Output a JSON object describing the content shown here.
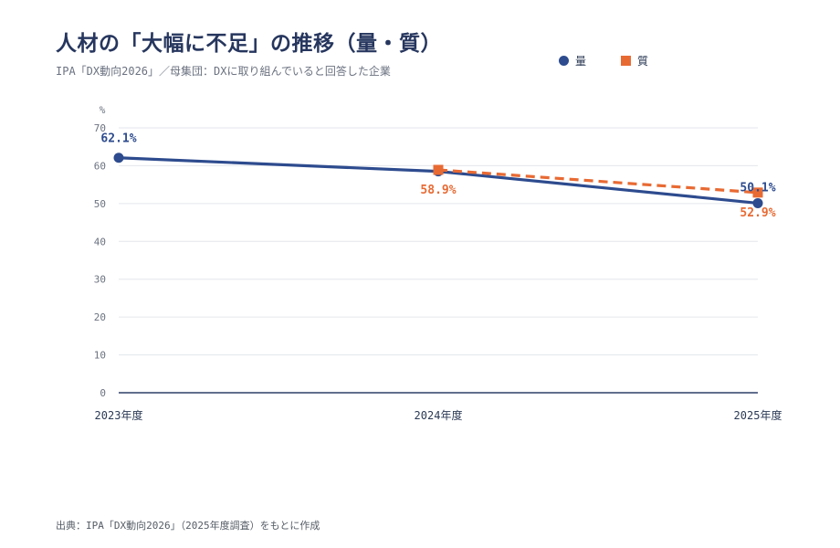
{
  "title": "人材の「大幅に不足」の推移（量・質）",
  "subtitle": "IPA「DX動向2026」／母集団：DXに取り組んでいると回答した企業",
  "source": "出典：IPA「DX動向2026」（2025年度調査）をもとに作成",
  "legend": [
    {
      "label": "量",
      "color": "#2d4b8e",
      "marker": "circle"
    },
    {
      "label": "質",
      "color": "#e86a33",
      "marker": "square"
    }
  ],
  "chart_data": {
    "type": "line",
    "categories": [
      "2023年度",
      "2024年度",
      "2025年度"
    ],
    "y_unit": "%",
    "ylim": [
      0,
      70
    ],
    "yticks": [
      0,
      10,
      20,
      30,
      40,
      50,
      60,
      70
    ],
    "grid": true,
    "legend_position": "top-right",
    "series": [
      {
        "name": "量",
        "color": "#2d4b8e",
        "marker": "circle",
        "line_style": "solid",
        "values": [
          62.1,
          58.5,
          50.1
        ],
        "data_labels": [
          "62.1%",
          null,
          "50.1%"
        ]
      },
      {
        "name": "質",
        "color": "#e86a33",
        "marker": "square",
        "line_style": "dashed",
        "values": [
          null,
          58.9,
          52.9
        ],
        "data_labels": [
          null,
          "58.9%",
          "52.9%"
        ]
      }
    ]
  }
}
